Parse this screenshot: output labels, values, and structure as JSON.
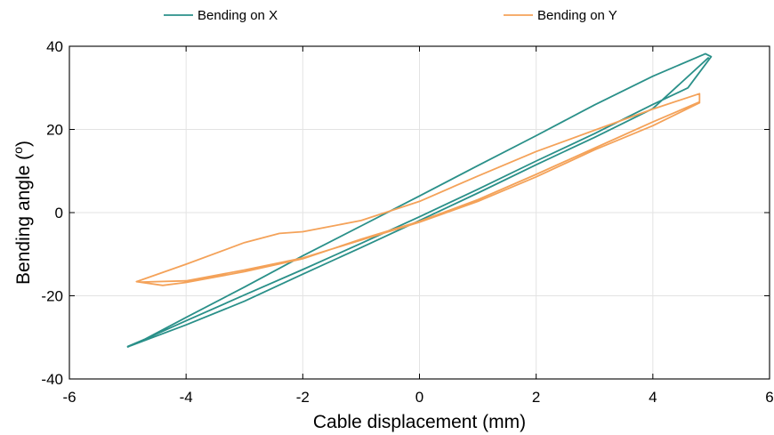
{
  "chart_data": {
    "type": "line",
    "xlabel": "Cable displacement (mm)",
    "ylabel_main": "Bending angle (",
    "ylabel_sup": "o",
    "ylabel_end": ")",
    "xlim": [
      -6,
      6
    ],
    "ylim": [
      -40,
      40
    ],
    "xticks": [
      -6,
      -4,
      -2,
      0,
      2,
      4,
      6
    ],
    "yticks": [
      -40,
      -20,
      0,
      20,
      40
    ],
    "xtick_labels": [
      "-6",
      "-4",
      "-2",
      "0",
      "2",
      "4",
      "6"
    ],
    "ytick_labels": [
      "-40",
      "-20",
      "0",
      "20",
      "40"
    ],
    "grid": true,
    "legend_position": "top",
    "series": [
      {
        "name": "Bending on X",
        "color": "#2a9089",
        "x": [
          -5.0,
          -4.0,
          -3.0,
          -2.0,
          -1.0,
          0.0,
          1.0,
          2.0,
          3.0,
          4.0,
          4.6,
          5.0,
          4.9,
          4.0,
          3.0,
          2.0,
          1.0,
          0.0,
          -1.0,
          -2.0,
          -3.0,
          -4.0,
          -4.7,
          -5.0,
          -4.95,
          -4.0,
          -3.0,
          -2.0,
          -1.0,
          0.0,
          1.0,
          2.0,
          3.0,
          4.0,
          4.95
        ],
        "y": [
          -32.3,
          -26.0,
          -19.8,
          -13.7,
          -7.4,
          -1.0,
          5.6,
          12.4,
          19.0,
          26.0,
          30.0,
          37.5,
          38.2,
          32.8,
          25.9,
          18.5,
          11.3,
          4.0,
          -3.2,
          -10.4,
          -17.9,
          -25.2,
          -30.4,
          -32.2,
          -32.0,
          -27.0,
          -21.3,
          -14.8,
          -8.4,
          -1.9,
          4.7,
          11.5,
          18.1,
          25.0,
          37.2
        ]
      },
      {
        "name": "Bending on Y",
        "color": "#f4a259",
        "x": [
          -4.8,
          -4.0,
          -3.0,
          -2.0,
          -1.0,
          0.0,
          1.0,
          2.0,
          3.0,
          4.0,
          4.8,
          4.8,
          4.0,
          3.0,
          2.0,
          1.0,
          0.0,
          -1.0,
          -2.0,
          -2.4,
          -3.0,
          -4.0,
          -4.85,
          -4.4,
          -4.0,
          -3.0,
          -2.0,
          -1.0,
          0.0,
          1.0,
          2.0,
          3.0,
          4.0,
          4.8,
          4.8
        ],
        "y": [
          -16.7,
          -16.4,
          -13.8,
          -10.9,
          -6.6,
          -2.3,
          2.7,
          8.6,
          15.1,
          20.9,
          26.4,
          28.6,
          24.9,
          19.8,
          14.7,
          8.8,
          2.7,
          -1.9,
          -4.6,
          -5.0,
          -7.2,
          -12.4,
          -16.6,
          -17.5,
          -16.8,
          -14.2,
          -11.1,
          -6.4,
          -2.1,
          3.1,
          9.2,
          15.5,
          21.8,
          26.6,
          27.6
        ]
      }
    ]
  }
}
